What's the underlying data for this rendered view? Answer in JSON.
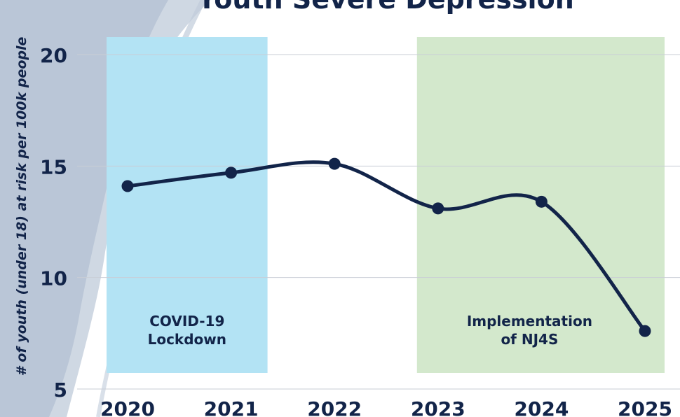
{
  "chart_data": {
    "type": "line",
    "title": "Youth Severe Depression",
    "ylabel": "# of youth (under 18) at risk per 100k people",
    "xlabel": "",
    "categories": [
      "2020",
      "2021",
      "2022",
      "2023",
      "2024",
      "2025"
    ],
    "series": [
      {
        "values": [
          14.1,
          14.7,
          15.1,
          13.1,
          13.4,
          7.6
        ]
      }
    ],
    "yticks": [
      5,
      10,
      15,
      20
    ],
    "ylim": [
      5,
      20.7
    ],
    "grid": true,
    "annotations": [
      {
        "label_lines": [
          "COVID-19",
          "Lockdown"
        ],
        "x_start": "2020",
        "x_end": "2021",
        "color": "#b3e3f4"
      },
      {
        "label_lines": [
          "Implementation",
          "of NJ4S"
        ],
        "x_start": "2023",
        "x_end": "2025",
        "color": "#d3e8cc"
      }
    ],
    "colors": {
      "line": "#122449",
      "grid": "#c9ced6",
      "text": "#122449"
    }
  }
}
